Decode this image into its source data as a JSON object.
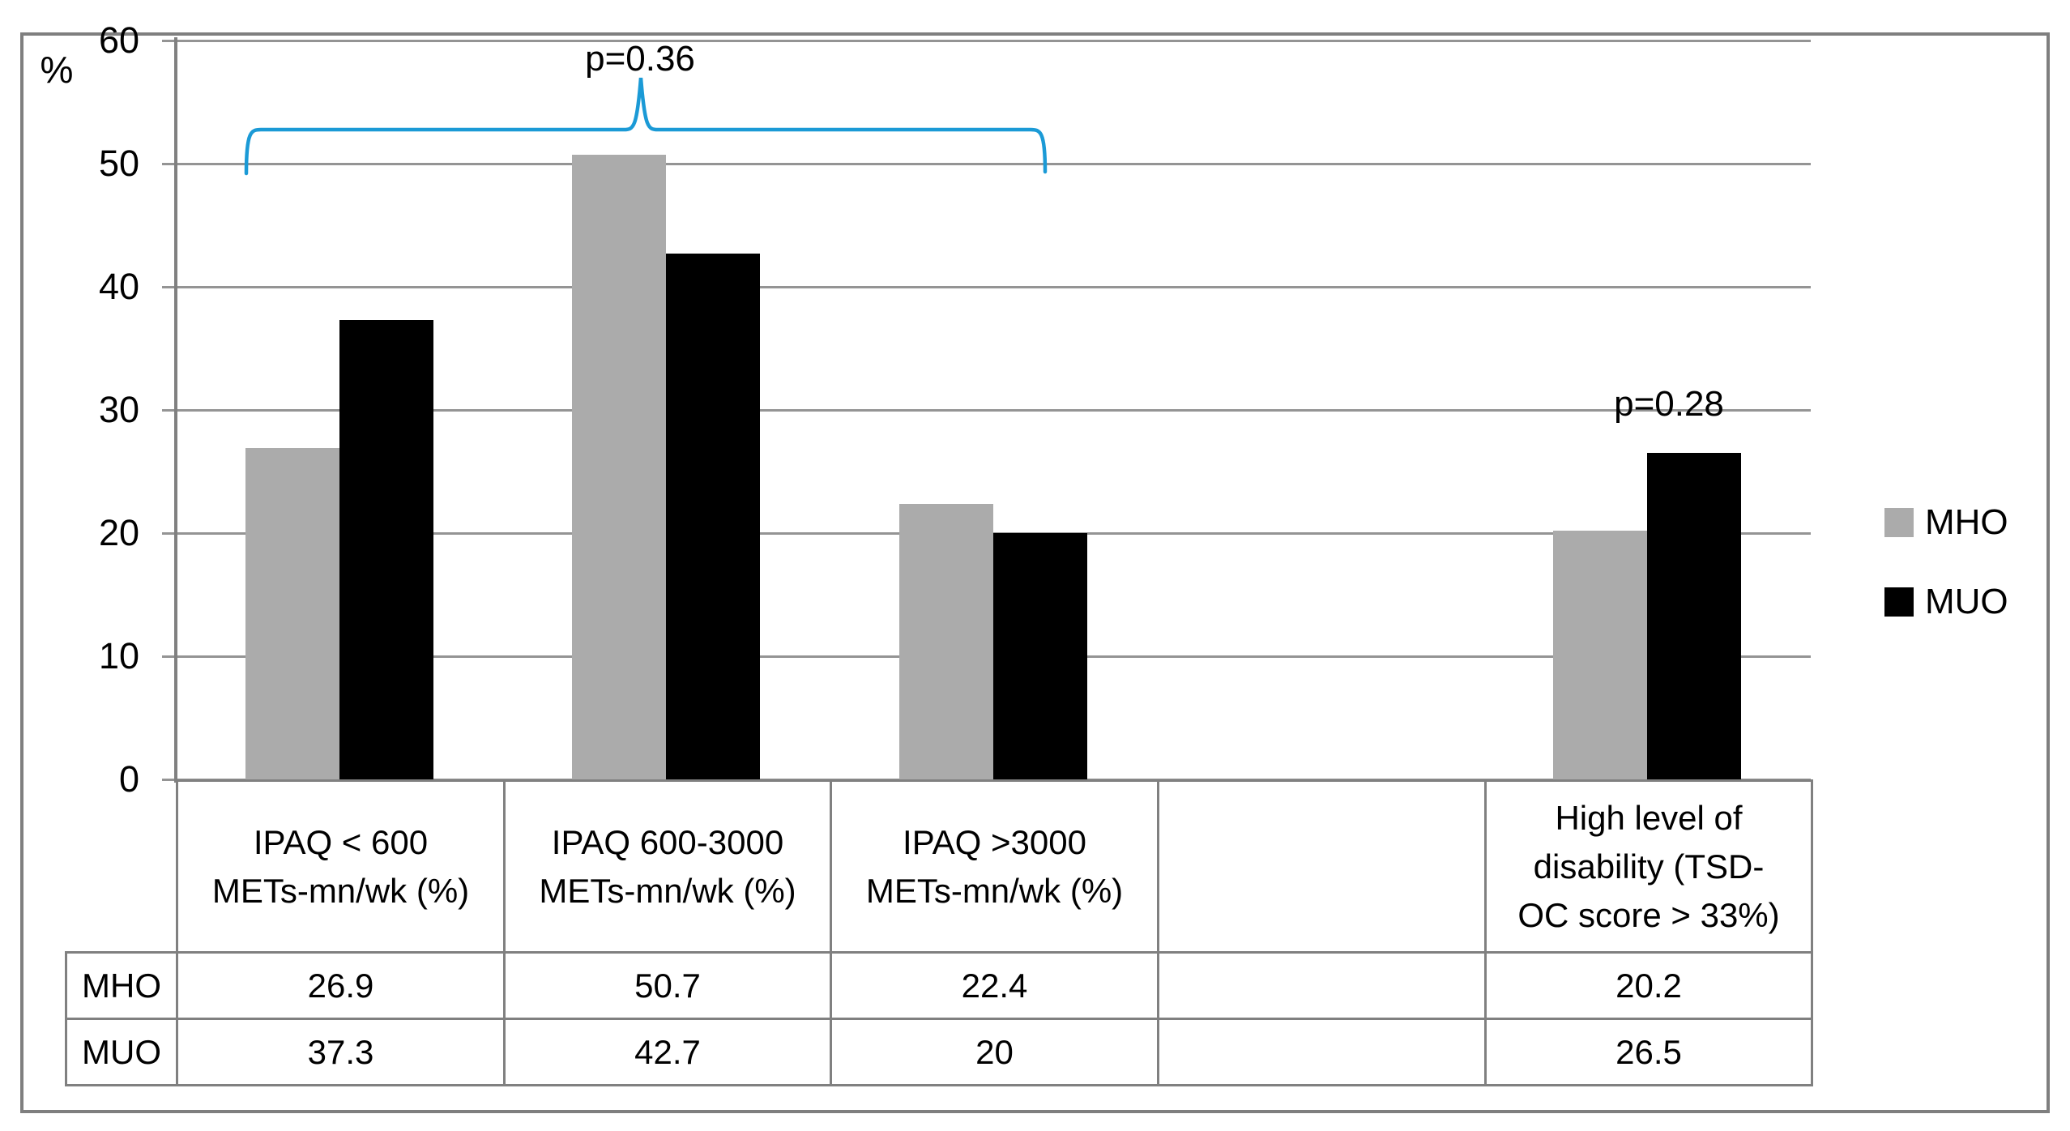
{
  "chart_data": {
    "type": "bar",
    "ylabel": "%",
    "ylim": [
      0,
      60
    ],
    "yticks": [
      0,
      10,
      20,
      30,
      40,
      50,
      60
    ],
    "grid": true,
    "legend_position": "right",
    "categories": [
      "IPAQ < 600\nMETs-mn/wk (%)",
      "IPAQ 600-3000\nMETs-mn/wk (%)",
      "IPAQ >3000\nMETs-mn/wk (%)",
      "",
      "High level of\ndisability (TSD-\nOC score > 33%)"
    ],
    "series": [
      {
        "name": "MHO",
        "color": "#ababab",
        "values": [
          26.9,
          50.7,
          22.4,
          null,
          20.2
        ]
      },
      {
        "name": "MUO",
        "color": "#000000",
        "values": [
          37.3,
          42.7,
          20,
          null,
          26.5
        ]
      }
    ],
    "annotations": [
      {
        "text": "p=0.36",
        "type": "brace",
        "span": "categories 1-3",
        "color": "#1b9ad6"
      },
      {
        "text": "p=0.28",
        "type": "text",
        "over": "category 5"
      }
    ],
    "table": {
      "row_labels": [
        "MHO",
        "MUO"
      ],
      "rows": [
        [
          "26.9",
          "50.7",
          "22.4",
          "",
          "20.2"
        ],
        [
          "37.3",
          "42.7",
          "20",
          "",
          "26.5"
        ]
      ]
    }
  }
}
